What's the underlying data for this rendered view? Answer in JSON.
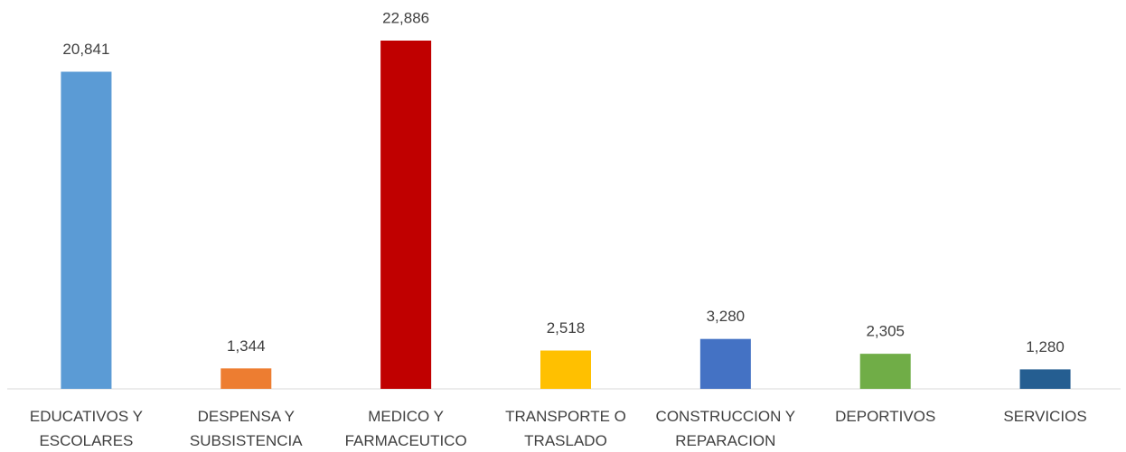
{
  "chart_data": {
    "type": "bar",
    "categories": [
      [
        "EDUCATIVOS Y",
        "ESCOLARES"
      ],
      [
        "DESPENSA Y",
        "SUBSISTENCIA"
      ],
      [
        "MEDICO Y",
        "FARMACEUTICO"
      ],
      [
        "TRANSPORTE O",
        "TRASLADO"
      ],
      [
        "CONSTRUCCION Y",
        "REPARACION"
      ],
      [
        "DEPORTIVOS"
      ],
      [
        "SERVICIOS"
      ]
    ],
    "values": [
      20841,
      1344,
      22886,
      2518,
      3280,
      2305,
      1280
    ],
    "value_labels": [
      "20,841",
      "1,344",
      "22,886",
      "2,518",
      "3,280",
      "2,305",
      "1,280"
    ],
    "colors": [
      "#5b9bd5",
      "#ed7d31",
      "#c00000",
      "#ffc000",
      "#4472c4",
      "#70ad47",
      "#255e91"
    ]
  }
}
